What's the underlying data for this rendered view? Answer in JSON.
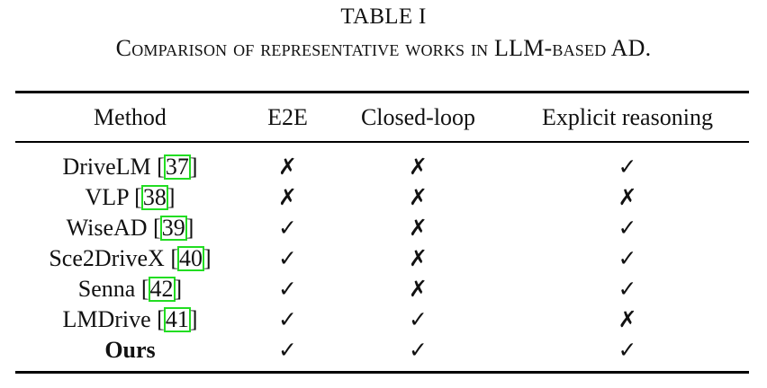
{
  "table": {
    "number": "TABLE I",
    "caption": "Comparison of representative works in LLM-based AD.",
    "headers": {
      "method": "Method",
      "e2e": "E2E",
      "closed_loop": "Closed-loop",
      "explicit_reasoning": "Explicit reasoning"
    },
    "rows": [
      {
        "method": "DriveLM",
        "ref": "37",
        "e2e": "✗",
        "closed_loop": "✗",
        "explicit_reasoning": "✓"
      },
      {
        "method": "VLP",
        "ref": "38",
        "e2e": "✗",
        "closed_loop": "✗",
        "explicit_reasoning": "✗"
      },
      {
        "method": "WiseAD",
        "ref": "39",
        "e2e": "✓",
        "closed_loop": "✗",
        "explicit_reasoning": "✓"
      },
      {
        "method": "Sce2DriveX",
        "ref": "40",
        "e2e": "✓",
        "closed_loop": "✗",
        "explicit_reasoning": "✓"
      },
      {
        "method": "Senna",
        "ref": "42",
        "e2e": "✓",
        "closed_loop": "✗",
        "explicit_reasoning": "✓"
      },
      {
        "method": "LMDrive",
        "ref": "41",
        "e2e": "✓",
        "closed_loop": "✓",
        "explicit_reasoning": "✗"
      },
      {
        "method": "Ours",
        "ref": "",
        "e2e": "✓",
        "closed_loop": "✓",
        "explicit_reasoning": "✓"
      }
    ],
    "colors": {
      "citation_box": "#22dd22",
      "text": "#111111"
    }
  }
}
